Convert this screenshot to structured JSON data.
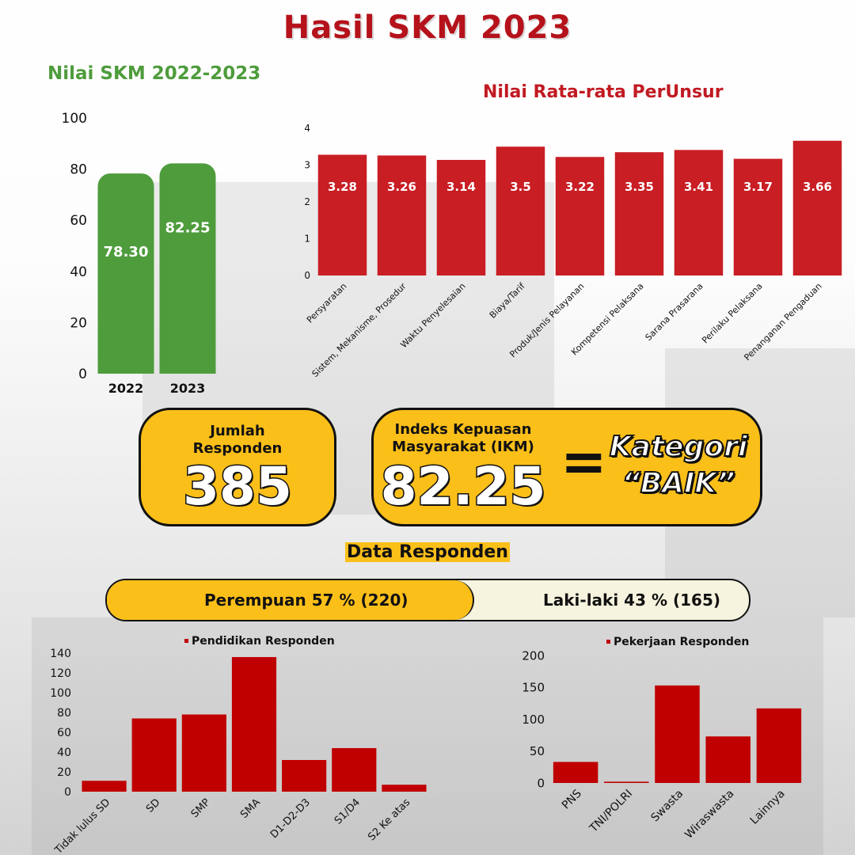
{
  "page": {
    "title": "Hasil SKM 2023",
    "respondents": {
      "label_line1": "Jumlah",
      "label_line2": "Responden",
      "value": "385"
    },
    "ikm": {
      "label_line1": "Indeks Kepuasan",
      "label_line2": "Masyarakat (IKM)",
      "value": "82.25",
      "equals": "=",
      "category_line1": "Kategori",
      "category_line2": "“BAIK”"
    },
    "section_title": "Data Responden",
    "gender": {
      "female_label": "Perempuan 57 % (220)",
      "female_share": 0.57,
      "male_label": "Laki-laki 43 % (165)"
    }
  },
  "colors": {
    "title": "#b5121b",
    "green": "#4e9c3c",
    "red": "#c81e24",
    "dark_red": "#c00000",
    "yellow": "#fbbf1a",
    "cream": "#f6f4de"
  },
  "chart_data": [
    {
      "type": "bar",
      "title": "Nilai SKM 2022-2023",
      "categories": [
        "2022",
        "2023"
      ],
      "values": [
        78.3,
        82.25
      ],
      "value_labels": [
        "78.30",
        "82.25"
      ],
      "ylim": [
        0,
        100
      ],
      "yticks": [
        0,
        20,
        40,
        60,
        80,
        100
      ],
      "color": "#4e9c3c"
    },
    {
      "type": "bar",
      "title": "Nilai Rata-rata PerUnsur",
      "categories": [
        "Persyaratan",
        "Sistem, Mekanisme, Prosedur",
        "Waktu Penyelesaian",
        "Biaya/Tarif",
        "Produk/Jenis Pelayanan",
        "Kompetensi Pelaksana",
        "Sarana Prasarana",
        "Perilaku Pelaksana",
        "Penanganan Pengaduan"
      ],
      "values": [
        3.28,
        3.26,
        3.14,
        3.5,
        3.22,
        3.35,
        3.41,
        3.17,
        3.66
      ],
      "value_labels": [
        "3.28",
        "3.26",
        "3.14",
        "3.5",
        "3.22",
        "3.35",
        "3.41",
        "3.17",
        "3.66"
      ],
      "ylim": [
        0,
        4
      ],
      "yticks": [
        0,
        1,
        2,
        3,
        4
      ],
      "color": "#c81e24"
    },
    {
      "type": "bar",
      "legend": "Pendidikan Responden",
      "categories": [
        "Tidak lulus SD",
        "SD",
        "SMP",
        "SMA",
        "D1-D2-D3",
        "S1/D4",
        "S2 Ke atas"
      ],
      "values": [
        11,
        74,
        78,
        136,
        32,
        44,
        7
      ],
      "ylim": [
        0,
        140
      ],
      "yticks": [
        0,
        20,
        40,
        60,
        80,
        100,
        120,
        140
      ],
      "color": "#c00000"
    },
    {
      "type": "bar",
      "legend": "Pekerjaan Responden",
      "categories": [
        "PNS",
        "TNI/POLRI",
        "Swasta",
        "Wiraswasta",
        "Lainnya"
      ],
      "values": [
        33,
        2,
        153,
        73,
        117
      ],
      "ylim": [
        0,
        200
      ],
      "yticks": [
        0,
        50,
        100,
        150,
        200
      ],
      "color": "#c00000"
    }
  ]
}
